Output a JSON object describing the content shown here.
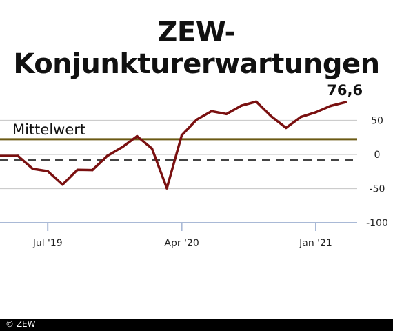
{
  "title": "ZEW-Konjunkturerwartungen",
  "footer": "© ZEW",
  "chart_data": {
    "type": "line",
    "title": "ZEW-Konjunkturerwartungen",
    "x": [
      "2019-05",
      "2019-06",
      "2019-07",
      "2019-08",
      "2019-09",
      "2019-10",
      "2019-11",
      "2019-12",
      "2020-01",
      "2020-02",
      "2020-03",
      "2020-04",
      "2020-05",
      "2020-06",
      "2020-07",
      "2020-08",
      "2020-09",
      "2020-10",
      "2020-11",
      "2020-12",
      "2021-01",
      "2021-02",
      "2021-03"
    ],
    "series": [
      {
        "values": [
          -2.1,
          -21.1,
          -24.5,
          -44.1,
          -22.5,
          -22.8,
          -2.1,
          10.7,
          26.7,
          8.7,
          -49.5,
          28.2,
          51.0,
          63.4,
          59.3,
          71.5,
          77.4,
          56.1,
          39.0,
          55.0,
          61.8,
          71.2,
          76.6
        ],
        "color": "#7a1010"
      }
    ],
    "x_start_value": -2.1,
    "x_start_label_visible": false,
    "ylim": [
      -100,
      100
    ],
    "yticks": [
      50,
      0,
      -50,
      -100
    ],
    "ytick_labels": [
      "50",
      "0",
      "-50",
      "-100"
    ],
    "xtick_labels": [
      {
        "at": "2019-07",
        "label": "Jul '19"
      },
      {
        "at": "2020-04",
        "label": "Apr '20"
      },
      {
        "at": "2021-01",
        "label": "Jan '21"
      }
    ],
    "reference_lines": [
      {
        "value": 22.3,
        "label": "Mittelwert",
        "color": "#6b5a14",
        "style": "solid"
      },
      {
        "value": -8.5,
        "style": "dashed",
        "color": "#444444"
      }
    ],
    "last_value_label": "76,6",
    "grid": true,
    "grid_color": "#cccccc",
    "axis_color": "#a9b9d6"
  }
}
